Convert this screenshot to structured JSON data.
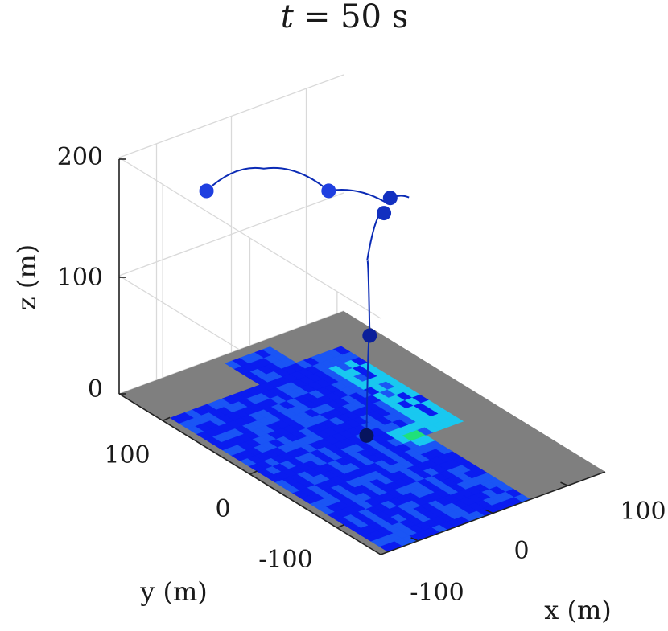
{
  "chart_data": {
    "type": "3d-scatter-surface",
    "title": {
      "var": "t",
      "eq": "= 50 s"
    },
    "axes": {
      "x": {
        "label": "x (m)",
        "ticks": [
          "-100",
          "0",
          "100"
        ],
        "range": [
          -150,
          150
        ]
      },
      "y": {
        "label": "y (m)",
        "ticks": [
          "-100",
          "0",
          "100"
        ],
        "range": [
          -150,
          150
        ]
      },
      "z": {
        "label": "z (m)",
        "ticks": [
          "0",
          "100",
          "200"
        ],
        "range": [
          0,
          200
        ]
      },
      "grid": true
    },
    "trajectory": {
      "color": "#0a2ab5",
      "points": [
        [
          -10,
          170,
          130
        ],
        [
          20,
          130,
          160
        ],
        [
          60,
          90,
          150
        ],
        [
          100,
          60,
          145
        ],
        [
          115,
          45,
          152
        ]
      ],
      "branch_points": [
        [
          95,
          55,
          140
        ],
        [
          30,
          20,
          130
        ],
        [
          10,
          0,
          80
        ],
        [
          0,
          -5,
          0
        ]
      ]
    },
    "agents": [
      {
        "x": -10,
        "y": 170,
        "z": 130,
        "color": "#1f3fe0"
      },
      {
        "x": 60,
        "y": 90,
        "z": 150,
        "color": "#1f3fe0"
      },
      {
        "x": 105,
        "y": 58,
        "z": 148,
        "color": "#1230c0"
      },
      {
        "x": 92,
        "y": 54,
        "z": 140,
        "color": "#1230c0"
      },
      {
        "x": 10,
        "y": 0,
        "z": 80,
        "color": "#0b1f9a"
      },
      {
        "x": 0,
        "y": -5,
        "z": 0,
        "color": "#07145e"
      }
    ],
    "ground": {
      "extent": [
        -150,
        150,
        -150,
        150
      ],
      "colormap": [
        "#0a1cf0",
        "#1a55f5",
        "#19c8f0",
        "#20e07a"
      ],
      "unexplored_color": "#7f7f7f"
    }
  }
}
